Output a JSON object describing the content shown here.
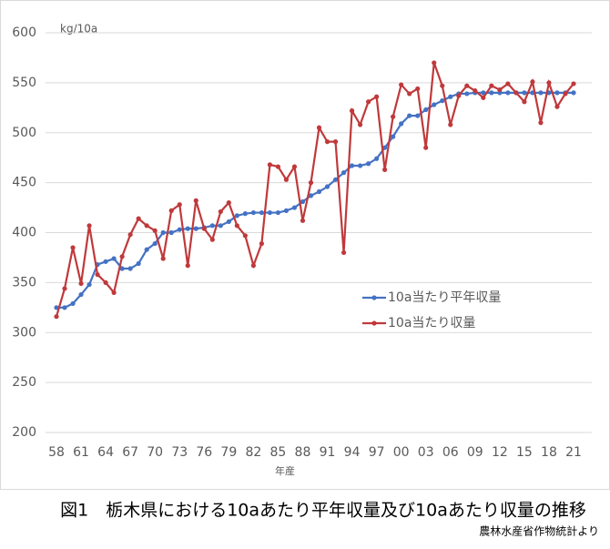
{
  "chart_data": {
    "type": "line",
    "title": "図1　栃木県における10aあたり平年収量及び10aあたり収量の推移",
    "subtitle": "農林水産省作物統計より",
    "y_label": "kg/10a",
    "x_label": "年産",
    "categories": [
      "58",
      null,
      null,
      "61",
      null,
      null,
      "64",
      null,
      null,
      "67",
      null,
      null,
      "70",
      null,
      null,
      "73",
      null,
      null,
      "76",
      null,
      null,
      "79",
      null,
      null,
      "82",
      null,
      null,
      "85",
      null,
      null,
      "88",
      null,
      null,
      "91",
      null,
      null,
      "94",
      null,
      null,
      "97",
      null,
      null,
      "00",
      null,
      null,
      "03",
      null,
      null,
      "06",
      null,
      null,
      "09",
      null,
      null,
      "12",
      null,
      null,
      "15",
      null,
      null,
      "18",
      null,
      null,
      "21"
    ],
    "series": [
      {
        "name": "10a当たり平年収量",
        "color": "#4472c4",
        "values": [
          325,
          325,
          329,
          338,
          348,
          368,
          371,
          374,
          364,
          364,
          369,
          383,
          389,
          400,
          400,
          403,
          404,
          404,
          405,
          407,
          407,
          411,
          417,
          419,
          420,
          420,
          420,
          420,
          422,
          425,
          431,
          437,
          441,
          446,
          453,
          460,
          467,
          467,
          469,
          474,
          485,
          496,
          509,
          517,
          517,
          523,
          528,
          532,
          536,
          539,
          539,
          540,
          540,
          540,
          540,
          540,
          540,
          540,
          540,
          540,
          540,
          540,
          540,
          540
        ]
      },
      {
        "name": "10a当たり収量",
        "color": "#c0393b",
        "values": [
          316,
          344,
          385,
          349,
          407,
          358,
          350,
          340,
          376,
          398,
          414,
          407,
          402,
          374,
          422,
          428,
          367,
          432,
          404,
          393,
          421,
          430,
          407,
          397,
          367,
          389,
          468,
          466,
          453,
          466,
          412,
          450,
          505,
          491,
          491,
          380,
          522,
          508,
          531,
          536,
          463,
          516,
          548,
          539,
          544,
          485,
          570,
          547,
          508,
          537,
          547,
          542,
          535,
          547,
          543,
          549,
          540,
          531,
          551,
          510,
          550,
          526,
          539,
          549
        ]
      }
    ],
    "ylim": [
      200,
      600
    ],
    "yticks": [
      200,
      250,
      300,
      350,
      400,
      450,
      500,
      550,
      600
    ],
    "grid": true
  }
}
